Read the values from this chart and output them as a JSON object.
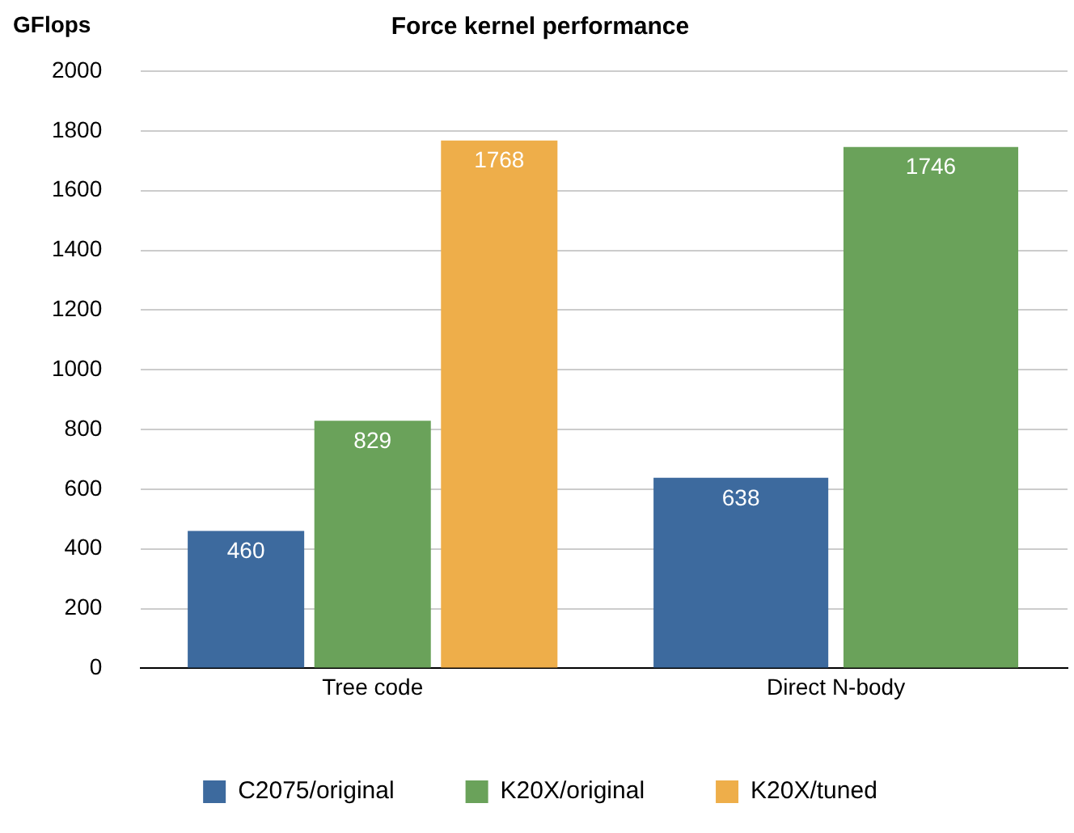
{
  "chart_data": {
    "type": "bar",
    "title": "Force kernel performance",
    "ylabel": "GFlops",
    "categories": [
      "Tree code",
      "Direct N-body"
    ],
    "series": [
      {
        "name": "C2075/original",
        "color": "#3d6a9e",
        "values": [
          460,
          638
        ]
      },
      {
        "name": "K20X/original",
        "color": "#6aa25a",
        "values": [
          829,
          1746
        ]
      },
      {
        "name": "K20X/tuned",
        "color": "#eeae4a",
        "values": [
          1768,
          null
        ]
      }
    ],
    "ylim": [
      0,
      2000
    ],
    "yticks": [
      0,
      200,
      400,
      600,
      800,
      1000,
      1200,
      1400,
      1600,
      1800,
      2000
    ],
    "grid": "y",
    "legend": "bottom",
    "data_labels": true
  }
}
